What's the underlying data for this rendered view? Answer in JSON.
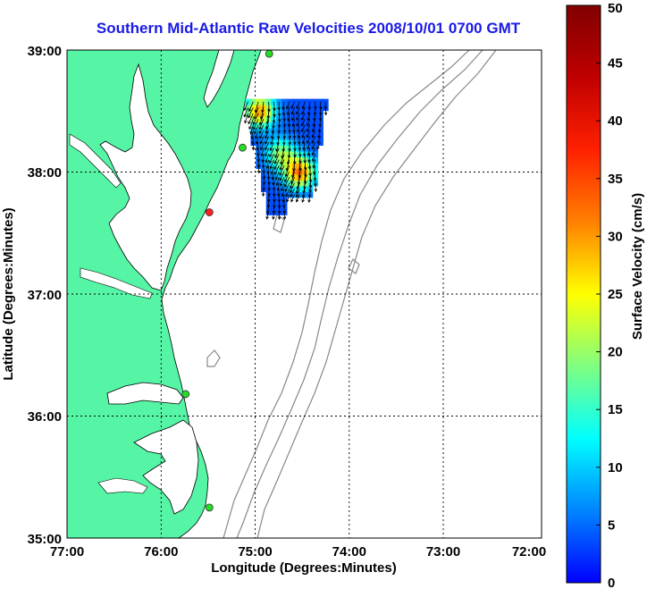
{
  "title": "Southern Mid-Atlantic Raw Velocities 2008/10/01 0700 GMT",
  "xlabel": "Longitude (Degrees:Minutes)",
  "ylabel": "Latitude (Degrees:Minutes)",
  "x_ticks": [
    "77:00",
    "76:00",
    "75:00",
    "74:00",
    "73:00",
    "72:00"
  ],
  "y_ticks": [
    "39:00",
    "38:00",
    "37:00",
    "36:00",
    "35:00"
  ],
  "colorbar": {
    "label": "Surface Velocity (cm/s)",
    "ticks": [
      "0",
      "5",
      "10",
      "15",
      "20",
      "25",
      "30",
      "35",
      "40",
      "45",
      "50"
    ],
    "range": [
      0,
      50
    ]
  },
  "colors": {
    "land": "#55f5a5",
    "ocean": "#ffffff",
    "title": "#1a1ae6",
    "bathymetry": "#888888",
    "grid": "#000000"
  },
  "stations": [
    {
      "lon": -74.87,
      "lat": 38.97,
      "status": "green"
    },
    {
      "lon": -75.15,
      "lat": 38.2,
      "status": "green"
    },
    {
      "lon": -75.5,
      "lat": 37.67,
      "status": "red"
    },
    {
      "lon": -75.75,
      "lat": 36.18,
      "status": "green"
    },
    {
      "lon": -75.5,
      "lat": 35.25,
      "status": "green"
    }
  ],
  "velocity_field": {
    "lon_range": [
      -75.12,
      -74.25
    ],
    "lat_range": [
      37.65,
      38.6
    ],
    "description_hotspots": [
      {
        "lon": -74.97,
        "lat": 38.5,
        "speed": 36
      },
      {
        "lon": -74.55,
        "lat": 38.0,
        "speed": 38
      },
      {
        "lon": -74.75,
        "lat": 38.15,
        "speed": 26
      }
    ],
    "base_speed": 10
  }
}
